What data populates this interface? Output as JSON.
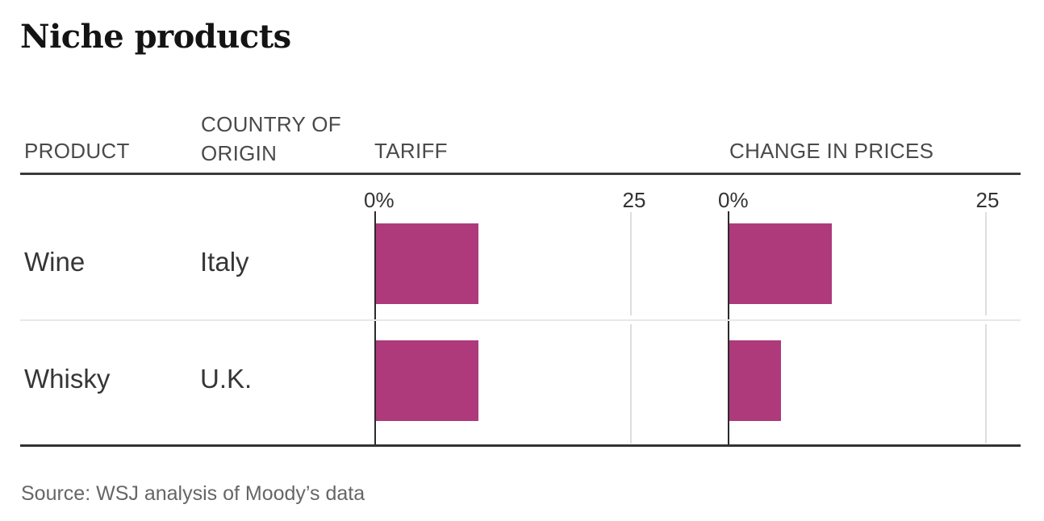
{
  "title": "Niche products",
  "columns": {
    "product": "PRODUCT",
    "country": "COUNTRY OF ORIGIN",
    "tariff": "TARIFF",
    "change": "CHANGE IN PRICES"
  },
  "axis": {
    "zero_label": "0%",
    "max_label": "25",
    "min": 0,
    "max": 25
  },
  "rows": [
    {
      "product": "Wine",
      "country": "Italy",
      "tariff": 10,
      "change": 10
    },
    {
      "product": "Whisky",
      "country": "U.K.",
      "tariff": 10,
      "change": 5
    }
  ],
  "source": "Source: WSJ analysis of Moody’s data",
  "colors": {
    "bar": "#ae3a7b",
    "axis_line": "#2b2b2b",
    "gridline": "#dedede",
    "header_rule": "#3a3a3a"
  },
  "chart_data": {
    "type": "bar",
    "orientation": "horizontal",
    "title": "Niche products",
    "categories": [
      "Wine (Italy)",
      "Whisky (U.K.)"
    ],
    "series": [
      {
        "name": "Tariff",
        "values": [
          10,
          10
        ]
      },
      {
        "name": "Change in prices",
        "values": [
          10,
          5
        ]
      }
    ],
    "unit": "%",
    "xlim": [
      0,
      25
    ],
    "x_tick_labels": [
      "0%",
      "25"
    ],
    "grid": "x-ticks-only",
    "legend_position": "none",
    "source": "Source: WSJ analysis of Moody’s data"
  }
}
